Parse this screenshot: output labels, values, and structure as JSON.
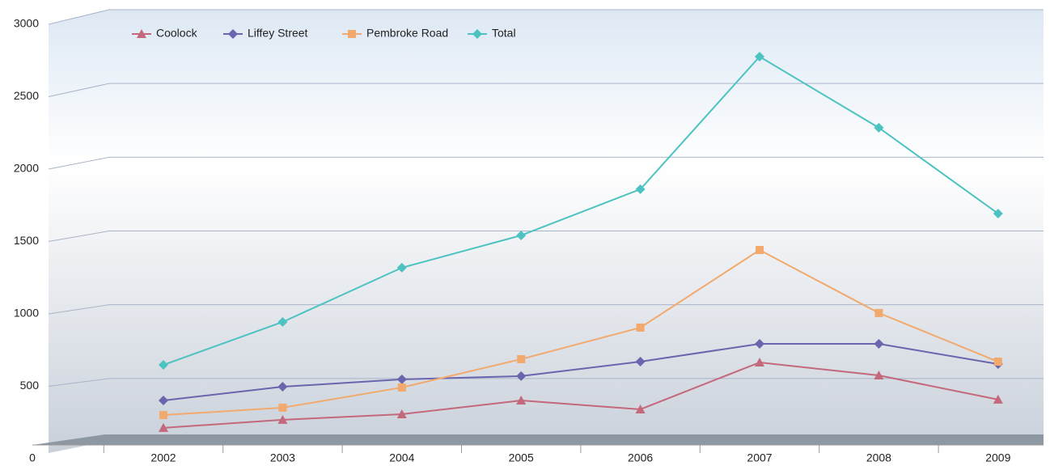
{
  "chart_data": {
    "type": "line",
    "categories": [
      "2002",
      "2003",
      "2004",
      "2005",
      "2006",
      "2007",
      "2008",
      "2009"
    ],
    "series": [
      {
        "name": "Coolock",
        "color": "#c4687c",
        "marker": "triangle",
        "values": [
          165,
          220,
          258,
          351,
          291,
          609,
          521,
          357
        ]
      },
      {
        "name": "Liffey Street",
        "color": "#6a65ad",
        "marker": "diamond",
        "values": [
          351,
          444,
          494,
          516,
          614,
          735,
          735,
          598
        ]
      },
      {
        "name": "Pembroke Road",
        "color": "#f2a96d",
        "marker": "square",
        "values": [
          252,
          302,
          439,
          631,
          845,
          1371,
          944,
          614
        ]
      },
      {
        "name": "Total",
        "color": "#4cc3c0",
        "marker": "diamond",
        "values": [
          592,
          883,
          1251,
          1470,
          1783,
          2682,
          2200,
          1618
        ]
      }
    ],
    "ylim": [
      0,
      3000
    ],
    "yticks": [
      0,
      500,
      1000,
      1500,
      2000,
      2500,
      3000
    ],
    "grid": true
  }
}
